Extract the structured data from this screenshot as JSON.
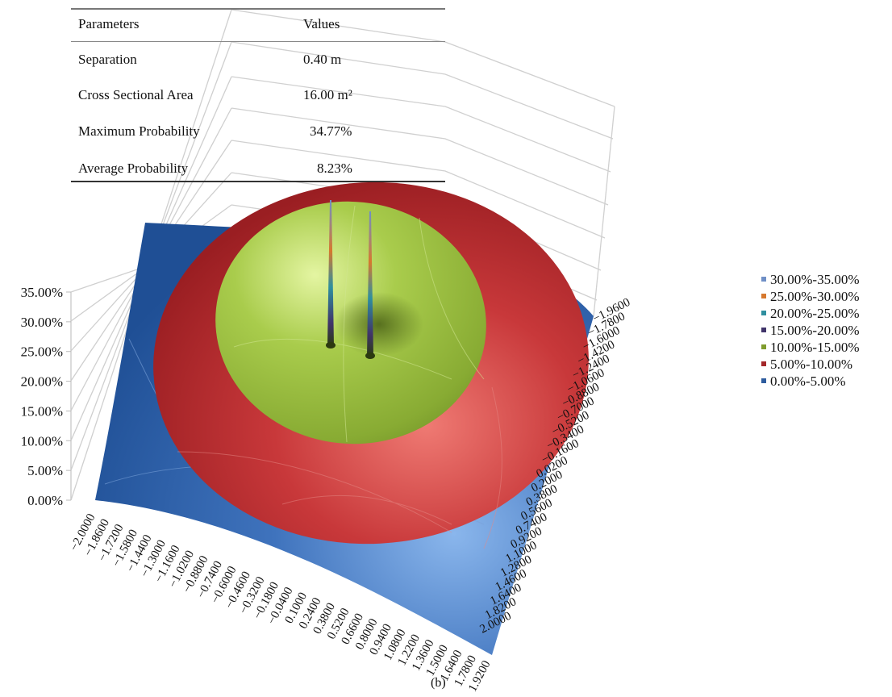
{
  "table": {
    "headers": [
      "Parameters",
      "Values"
    ],
    "rows": [
      {
        "param": "Separation",
        "value": "0.40 m"
      },
      {
        "param": "Cross Sectional Area",
        "value": "16.00 m²"
      },
      {
        "param": "Maximum Probability",
        "value": "34.77%"
      },
      {
        "param": "Average Probability",
        "value": "8.23%"
      }
    ]
  },
  "chart_data": {
    "type": "surface",
    "z_ticks": [
      "0.00%",
      "5.00%",
      "10.00%",
      "15.00%",
      "20.00%",
      "25.00%",
      "30.00%",
      "35.00%"
    ],
    "z_range": [
      0,
      35
    ],
    "x_ticks": [
      "-2.0000",
      "-1.8600",
      "-1.7200",
      "-1.5800",
      "-1.4400",
      "-1.3000",
      "-1.1600",
      "-1.0200",
      "-0.8800",
      "-0.7400",
      "-0.6000",
      "-0.4600",
      "-0.3200",
      "-0.1800",
      "-0.0400",
      "0.1000",
      "0.2400",
      "0.3800",
      "0.5200",
      "0.6600",
      "0.8000",
      "0.9400",
      "1.0800",
      "1.2200",
      "1.3600",
      "1.5000",
      "1.6400",
      "1.7800",
      "1.9200"
    ],
    "y_ticks": [
      "-1.9600",
      "-1.7800",
      "-1.6000",
      "-1.4200",
      "-1.2400",
      "-1.0600",
      "-0.8800",
      "-0.7000",
      "-0.5200",
      "-0.3400",
      "-0.1600",
      "0.0200",
      "0.2000",
      "0.3800",
      "0.5600",
      "0.7400",
      "0.9200",
      "1.1000",
      "1.2800",
      "1.4600",
      "1.6400",
      "1.8200",
      "2.0000"
    ],
    "x_range": [
      -2.0,
      2.0
    ],
    "y_range": [
      -2.0,
      2.0
    ],
    "legend": [
      {
        "label": "30.00%-35.00%",
        "color": "#6f8fc6"
      },
      {
        "label": "25.00%-30.00%",
        "color": "#d6782e"
      },
      {
        "label": "20.00%-25.00%",
        "color": "#2f8f9f"
      },
      {
        "label": "15.00%-20.00%",
        "color": "#40346a"
      },
      {
        "label": "10.00%-15.00%",
        "color": "#7f9c2e"
      },
      {
        "label": "5.00%-10.00%",
        "color": "#a3272a"
      },
      {
        "label": "0.00%-5.00%",
        "color": "#2e5c9e"
      }
    ],
    "bands": [
      {
        "range": [
          0,
          5
        ],
        "color": "#2e5c9e"
      },
      {
        "range": [
          5,
          10
        ],
        "color": "#b8292c"
      },
      {
        "range": [
          10,
          15
        ],
        "color": "#8fb335"
      }
    ],
    "peak_values": [
      34.77,
      34.77
    ],
    "legend_position": "right"
  },
  "caption": "(b)"
}
